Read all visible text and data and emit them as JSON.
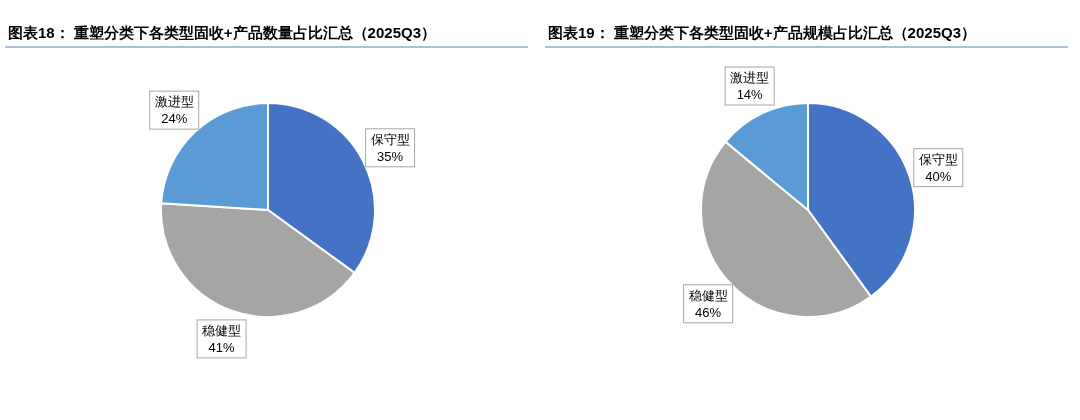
{
  "chart_data": [
    {
      "type": "pie",
      "title": "图表18： 重塑分类下各类型固收+产品数量占比汇总（2025Q3）",
      "categories": [
        "保守型",
        "稳健型",
        "激进型"
      ],
      "values": [
        35,
        41,
        24
      ],
      "colors": [
        "#4472c4",
        "#a5a5a5",
        "#5b9bd5"
      ],
      "value_labels": [
        "35%",
        "41%",
        "24%"
      ]
    },
    {
      "type": "pie",
      "title": "图表19： 重塑分类下各类型固收+产品规模占比汇总（2025Q3）",
      "categories": [
        "保守型",
        "稳健型",
        "激进型"
      ],
      "values": [
        40,
        46,
        14
      ],
      "colors": [
        "#4472c4",
        "#a5a5a5",
        "#5b9bd5"
      ],
      "value_labels": [
        "40%",
        "46%",
        "14%"
      ]
    }
  ]
}
